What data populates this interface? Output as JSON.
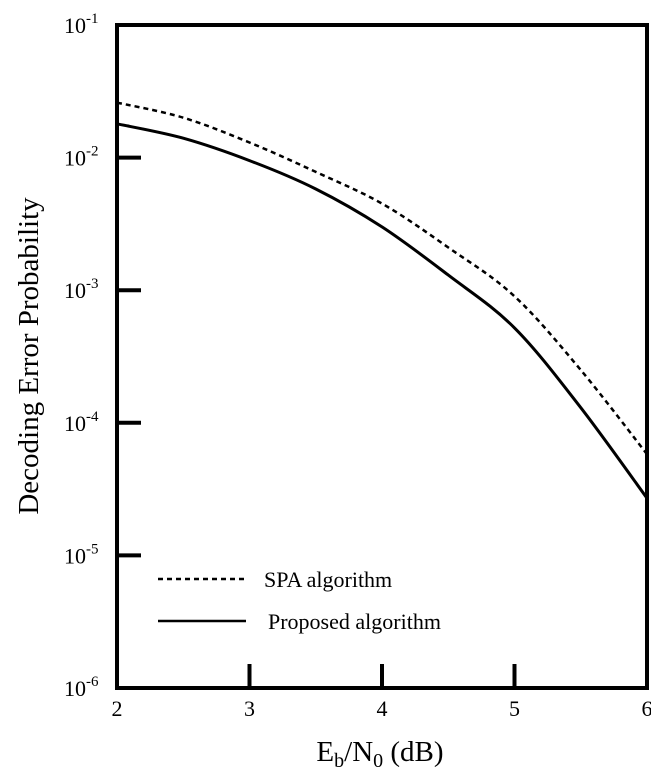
{
  "chart_data": {
    "type": "line",
    "xlabel": {
      "main": "E",
      "sub1": "b",
      "mid": "/N",
      "sub2": "0",
      "tail": " (dB)"
    },
    "ylabel": "Decoding Error Probability",
    "xlim": [
      2,
      6
    ],
    "ylim": [
      1e-06,
      0.1
    ],
    "yscale": "log",
    "grid": false,
    "legend_position": "bottom-left",
    "x_ticks": [
      {
        "value": 2,
        "label": "2"
      },
      {
        "value": 3,
        "label": "3"
      },
      {
        "value": 4,
        "label": "4"
      },
      {
        "value": 5,
        "label": "5"
      },
      {
        "value": 6,
        "label": "6"
      }
    ],
    "y_ticks": [
      {
        "exp": -1,
        "base": "10",
        "sup": "-1"
      },
      {
        "exp": -2,
        "base": "10",
        "sup": "-2"
      },
      {
        "exp": -3,
        "base": "10",
        "sup": "-3"
      },
      {
        "exp": -4,
        "base": "10",
        "sup": "-4"
      },
      {
        "exp": -5,
        "base": "10",
        "sup": "-5"
      },
      {
        "exp": -6,
        "base": "10",
        "sup": "-6"
      }
    ],
    "series": [
      {
        "name": "SPA algorithm",
        "style": "dashed",
        "x": [
          2.0,
          2.5,
          3.0,
          3.5,
          4.0,
          4.5,
          5.0,
          5.5,
          6.0
        ],
        "y": [
          0.026,
          0.02,
          0.013,
          0.0078,
          0.0045,
          0.0021,
          0.0009,
          0.00025,
          5.8e-05
        ]
      },
      {
        "name": "Proposed algorithm",
        "style": "solid",
        "x": [
          2.0,
          2.5,
          3.0,
          3.5,
          4.0,
          4.5,
          5.0,
          5.5,
          6.0
        ],
        "y": [
          0.018,
          0.014,
          0.0095,
          0.0058,
          0.003,
          0.0013,
          0.00052,
          0.00013,
          2.7e-05
        ]
      }
    ]
  }
}
